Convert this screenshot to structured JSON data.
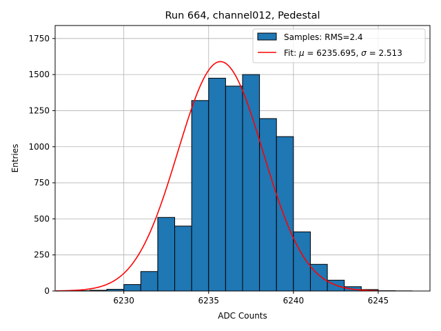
{
  "chart_data": {
    "type": "bar",
    "title": "Run 664, channel012, Pedestal",
    "xlabel": "ADC Counts",
    "ylabel": "Entries",
    "xlim": [
      6225.95,
      6248.05
    ],
    "ylim": [
      0,
      1840
    ],
    "x_ticks": [
      6230,
      6235,
      6240,
      6245
    ],
    "y_ticks": [
      0,
      250,
      500,
      750,
      1000,
      1250,
      1500,
      1750
    ],
    "grid": true,
    "legend_position": "top-right",
    "histogram": {
      "name": "Samples: RMS=2.4",
      "bin_width": 1,
      "bin_edges": [
        6227,
        6228,
        6229,
        6230,
        6231,
        6232,
        6233,
        6234,
        6235,
        6236,
        6237,
        6238,
        6239,
        6240,
        6241,
        6242,
        6243,
        6244,
        6245,
        6246,
        6247
      ],
      "counts": [
        2,
        5,
        12,
        45,
        135,
        510,
        450,
        1320,
        1475,
        1420,
        1500,
        1195,
        1070,
        410,
        185,
        75,
        30,
        10,
        2,
        1
      ],
      "color": "#1f77b4",
      "edge_color": "#000000"
    },
    "fit": {
      "name_prefix": "Fit: ",
      "mu_symbol": "μ",
      "sigma_symbol": "σ",
      "mu_text": "6235.695",
      "sigma_text": "2.513",
      "mu": 6235.695,
      "sigma": 2.513,
      "amplitude": 1590,
      "x_range": [
        6226,
        6245
      ],
      "color": "#ff0000"
    }
  }
}
